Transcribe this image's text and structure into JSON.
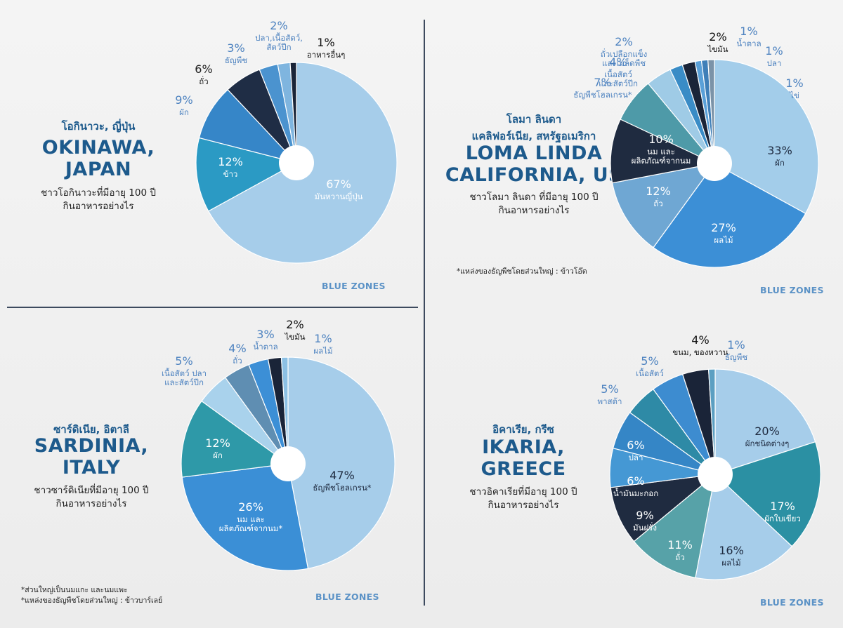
{
  "brand_text": "BLUE ZONES",
  "panels": [
    {
      "key": "okinawa",
      "title_th": "โอกินาวะ, ญี่ปุ่น",
      "title_en_1": "OKINAWA,",
      "title_en_2": "JAPAN",
      "subtitle_1": "ชาวโอกินาวะที่มีอายุ 100 ปี",
      "subtitle_2": "กินอาหารอย่างไร",
      "notes": []
    },
    {
      "key": "loma-linda",
      "title_th": "โลมา ลินดา",
      "title_th_2": "แคลิฟอร์เนีย, สหรัฐอเมริกา",
      "title_en_1": "LOMA LINDA",
      "title_en_2": "CALIFORNIA, US",
      "subtitle_1": "ชาวโลมา ลินดา ที่มีอายุ 100 ปี",
      "subtitle_2": "กินอาหารอย่างไร",
      "notes": [
        "*แหล่งของธัญพืชโดยส่วนใหญ่ : ข้าวโอ๊ต"
      ]
    },
    {
      "key": "sardinia",
      "title_th": "ซาร์ดิเนีย, อิตาลี",
      "title_en_1": "SARDINIA,",
      "title_en_2": "ITALY",
      "subtitle_1": "ชาวซาร์ดิเนียที่มีอายุ 100 ปี",
      "subtitle_2": "กินอาหารอย่างไร",
      "notes": [
        "*ส่วนใหญ่เป็นนมแกะ และนมแพะ",
        "*แหล่งของธัญพืชโดยส่วนใหญ่ : ข้าวบาร์เลย์"
      ]
    },
    {
      "key": "ikaria",
      "title_th": "อิคาเรีย, กรีซ",
      "title_en_1": "IKARIA,",
      "title_en_2": "GREECE",
      "subtitle_1": "ชาวอิคาเรียที่มีอายุ 100 ปี",
      "subtitle_2": "กินอาหารอย่างไร",
      "notes": []
    }
  ],
  "chart_data": [
    {
      "type": "pie",
      "panel": "okinawa",
      "slices": [
        {
          "pct": "67%",
          "label": "มันหวานญี่ปุ่น",
          "value": 67,
          "color": "#a6cdea"
        },
        {
          "pct": "12%",
          "label": "ข้าว",
          "value": 12,
          "color": "#2b9ac4"
        },
        {
          "pct": "9%",
          "label": "ผัก",
          "value": 9,
          "color": "#3686c8"
        },
        {
          "pct": "6%",
          "label": "ถั่ว",
          "value": 6,
          "color": "#1f2d45"
        },
        {
          "pct": "3%",
          "label": "ธัญพืช",
          "value": 3,
          "color": "#4b93cf"
        },
        {
          "pct": "2%",
          "label": "ปลา,เนื้อสัตว์, สัตว์ปีก",
          "value": 2,
          "color": "#7fb5df"
        },
        {
          "pct": "1%",
          "label": "อาหารอื่นๆ",
          "value": 1,
          "color": "#1a2438"
        }
      ]
    },
    {
      "type": "pie",
      "panel": "loma-linda",
      "slices": [
        {
          "pct": "33%",
          "label": "ผัก",
          "value": 33,
          "color": "#a3cdea"
        },
        {
          "pct": "27%",
          "label": "ผลไม้",
          "value": 27,
          "color": "#3c8fd6"
        },
        {
          "pct": "12%",
          "label": "ถั่ว",
          "value": 12,
          "color": "#6fa7d3"
        },
        {
          "pct": "10%",
          "label": "นม และ ผลิตภัณฑ์จากนม",
          "value": 10,
          "color": "#1f2b40"
        },
        {
          "pct": "7%",
          "label": "ธัญพืชโฮลเกรน*",
          "value": 7,
          "color": "#4e9aa8"
        },
        {
          "pct": "4%",
          "label": "เนื้อสัตว์ และสัตว์ปีก",
          "value": 4,
          "color": "#9fcbe6"
        },
        {
          "pct": "2%",
          "label": "ถั่วเปลือกแข็ง และเมล็ดพืช",
          "value": 2,
          "color": "#3a8cc6"
        },
        {
          "pct": "2%",
          "label": "ไขมัน",
          "value": 2,
          "color": "#1a2438"
        },
        {
          "pct": "1%",
          "label": "น้ำตาล",
          "value": 1,
          "color": "#5aa0d8"
        },
        {
          "pct": "1%",
          "label": "ปลา",
          "value": 1,
          "color": "#3f7fb8"
        },
        {
          "pct": "1%",
          "label": "ไข่",
          "value": 1,
          "color": "#7b93a8"
        }
      ]
    },
    {
      "type": "pie",
      "panel": "sardinia",
      "slices": [
        {
          "pct": "47%",
          "label": "ธัญพืชโฮลเกรน*",
          "value": 47,
          "color": "#a6cdea"
        },
        {
          "pct": "26%",
          "label": "นม และ ผลิตภัณฑ์จากนม*",
          "value": 26,
          "color": "#3b8fd6"
        },
        {
          "pct": "12%",
          "label": "ผัก",
          "value": 12,
          "color": "#2e99a8"
        },
        {
          "pct": "5%",
          "label": "เนื้อสัตว์ ปลา และสัตว์ปีก",
          "value": 5,
          "color": "#a9d2ec"
        },
        {
          "pct": "4%",
          "label": "ถั่ว",
          "value": 4,
          "color": "#5f8eb2"
        },
        {
          "pct": "3%",
          "label": "น้ำตาล",
          "value": 3,
          "color": "#3c8fd6"
        },
        {
          "pct": "2%",
          "label": "ไขมัน",
          "value": 2,
          "color": "#1a2438"
        },
        {
          "pct": "1%",
          "label": "ผลไม้",
          "value": 1,
          "color": "#8cc0e4"
        }
      ]
    },
    {
      "type": "pie",
      "panel": "ikaria",
      "slices": [
        {
          "pct": "20%",
          "label": "ผักชนิดต่างๆ",
          "value": 20,
          "color": "#a6cdea"
        },
        {
          "pct": "17%",
          "label": "ผักใบเขียว",
          "value": 17,
          "color": "#2b90a3"
        },
        {
          "pct": "16%",
          "label": "ผลไม้",
          "value": 16,
          "color": "#a6cdea"
        },
        {
          "pct": "11%",
          "label": "ถั่ว",
          "value": 11,
          "color": "#57a2a8"
        },
        {
          "pct": "9%",
          "label": "มันฝรั่ง",
          "value": 9,
          "color": "#1f2b40"
        },
        {
          "pct": "6%",
          "label": "น้ำมันมะกอก",
          "value": 6,
          "color": "#4598d4"
        },
        {
          "pct": "6%",
          "label": "ปลา",
          "value": 6,
          "color": "#3586c6"
        },
        {
          "pct": "5%",
          "label": "พาสต้า",
          "value": 5,
          "color": "#2e8aa6"
        },
        {
          "pct": "5%",
          "label": "เนื้อสัตว์",
          "value": 5,
          "color": "#3d8cd0"
        },
        {
          "pct": "4%",
          "label": "ขนม, ของหวาน",
          "value": 4,
          "color": "#1a2438"
        },
        {
          "pct": "1%",
          "label": "ธัญพืช",
          "value": 1,
          "color": "#5b9fc2"
        }
      ]
    }
  ]
}
